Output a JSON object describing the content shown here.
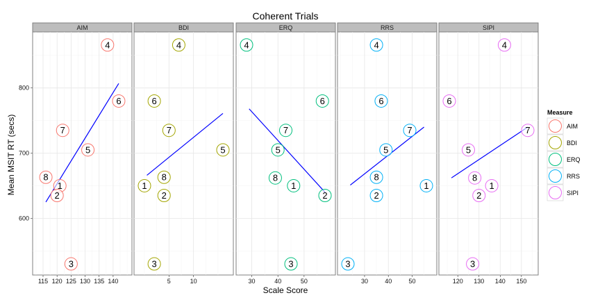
{
  "chart_data": {
    "type": "scatter",
    "title": "Coherent Trials",
    "xlabel": "Scale Score",
    "ylabel": "Mean MSIT RT (secs)",
    "ylim": [
      513,
      886
    ],
    "yticks": [
      600,
      700,
      800
    ],
    "grid": true,
    "legend": {
      "title": "Measure",
      "placement": "right",
      "entries": [
        "AIM",
        "BDI",
        "ERQ",
        "RRS",
        "SIPI"
      ]
    },
    "colors": {
      "AIM": "#f8766d",
      "BDI": "#a3a500",
      "ERQ": "#00bf7d",
      "RRS": "#00b0f6",
      "SIPI": "#e76bf3",
      "fit": "#0000ff"
    },
    "panels": [
      {
        "name": "AIM",
        "xlim": [
          115,
          143
        ],
        "xticks": [
          115,
          120,
          125,
          130,
          135,
          140
        ],
        "points": [
          {
            "label": "4",
            "x": 138,
            "y": 866
          },
          {
            "label": "6",
            "x": 142,
            "y": 780
          },
          {
            "label": "7",
            "x": 122,
            "y": 735
          },
          {
            "label": "5",
            "x": 131,
            "y": 705
          },
          {
            "label": "8",
            "x": 116,
            "y": 663
          },
          {
            "label": "1",
            "x": 121,
            "y": 650
          },
          {
            "label": "2",
            "x": 120,
            "y": 635
          },
          {
            "label": "3",
            "x": 125,
            "y": 530
          }
        ],
        "fit": [
          [
            116,
            625
          ],
          [
            142,
            807
          ]
        ]
      },
      {
        "name": "BDI",
        "xlim": [
          0,
          16
        ],
        "xticks": [
          5,
          10
        ],
        "points": [
          {
            "label": "4",
            "x": 7,
            "y": 866
          },
          {
            "label": "6",
            "x": 2,
            "y": 780
          },
          {
            "label": "7",
            "x": 5,
            "y": 735
          },
          {
            "label": "5",
            "x": 16,
            "y": 705
          },
          {
            "label": "8",
            "x": 4,
            "y": 663
          },
          {
            "label": "1",
            "x": 0,
            "y": 650
          },
          {
            "label": "2",
            "x": 4,
            "y": 635
          },
          {
            "label": "3",
            "x": 2,
            "y": 530
          }
        ],
        "fit": [
          [
            0.5,
            666
          ],
          [
            16,
            761
          ]
        ]
      },
      {
        "name": "ERQ",
        "xlim": [
          28,
          58
        ],
        "xticks": [
          30,
          40,
          50
        ],
        "points": [
          {
            "label": "4",
            "x": 28,
            "y": 866
          },
          {
            "label": "6",
            "x": 57,
            "y": 780
          },
          {
            "label": "7",
            "x": 43,
            "y": 735
          },
          {
            "label": "5",
            "x": 40,
            "y": 705
          },
          {
            "label": "8",
            "x": 39,
            "y": 662
          },
          {
            "label": "1",
            "x": 46,
            "y": 650
          },
          {
            "label": "2",
            "x": 58,
            "y": 635
          },
          {
            "label": "3",
            "x": 45,
            "y": 530
          }
        ],
        "fit": [
          [
            29,
            768
          ],
          [
            58,
            640
          ]
        ]
      },
      {
        "name": "RRS",
        "xlim": [
          23,
          56
        ],
        "xticks": [
          30,
          40,
          50
        ],
        "points": [
          {
            "label": "4",
            "x": 35,
            "y": 866
          },
          {
            "label": "6",
            "x": 37,
            "y": 780
          },
          {
            "label": "7",
            "x": 49,
            "y": 735
          },
          {
            "label": "5",
            "x": 39,
            "y": 705
          },
          {
            "label": "8",
            "x": 35,
            "y": 663
          },
          {
            "label": "1",
            "x": 56,
            "y": 650
          },
          {
            "label": "2",
            "x": 35,
            "y": 635
          },
          {
            "label": "3",
            "x": 23,
            "y": 530
          }
        ],
        "fit": [
          [
            24,
            651
          ],
          [
            55,
            740
          ]
        ]
      },
      {
        "name": "SIPI",
        "xlim": [
          116,
          153
        ],
        "xticks": [
          120,
          130,
          140,
          150
        ],
        "points": [
          {
            "label": "4",
            "x": 142,
            "y": 866
          },
          {
            "label": "6",
            "x": 116,
            "y": 780
          },
          {
            "label": "7",
            "x": 153,
            "y": 735
          },
          {
            "label": "5",
            "x": 125,
            "y": 705
          },
          {
            "label": "8",
            "x": 128,
            "y": 662
          },
          {
            "label": "1",
            "x": 136,
            "y": 650
          },
          {
            "label": "2",
            "x": 130,
            "y": 635
          },
          {
            "label": "3",
            "x": 127,
            "y": 530
          }
        ],
        "fit": [
          [
            117,
            662
          ],
          [
            153,
            740
          ]
        ]
      }
    ]
  }
}
